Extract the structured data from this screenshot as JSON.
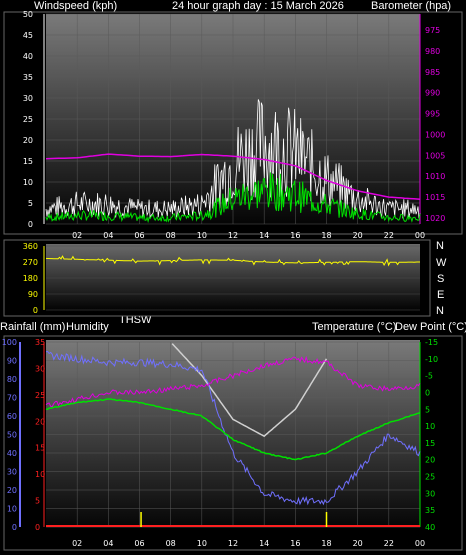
{
  "header": {
    "left": "Windspeed (kph)",
    "center": "24 hour graph day : 15 March 2026",
    "right": "Barometer (hpa)"
  },
  "direction_compass": [
    "N",
    "W",
    "S",
    "E",
    "N"
  ],
  "lower_header": {
    "rainfall": "Rainfall (mm)",
    "humidity": "Humidity",
    "thsw": "THSW",
    "temperature": "Temperature (°C)",
    "dew_point": "Dew Point (°C)"
  },
  "colors": {
    "background": "#000000",
    "wind_gust": "#ffffff",
    "wind_avg": "#00e000",
    "barometer": "#e000e0",
    "wind_direction": "#ffff00",
    "humidity": "#7070ff",
    "rainfall": "#ff2020",
    "temperature": "#00e000",
    "dew_point": "#e000e0",
    "thsw": "#d0d0d0",
    "marker": "#ffff00"
  },
  "chart_data": [
    {
      "type": "line",
      "title": "24 hour graph day : 15 March 2026",
      "x_ticks": [
        "02",
        "04",
        "06",
        "08",
        "10",
        "12",
        "14",
        "16",
        "18",
        "20",
        "22",
        "00"
      ],
      "x": [
        0,
        2,
        4,
        6,
        8,
        10,
        12,
        14,
        16,
        18,
        20,
        22,
        24
      ],
      "y_left": {
        "label": "Windspeed (kph)",
        "ylim": [
          0,
          50
        ],
        "ticks": [
          0,
          5,
          10,
          15,
          20,
          25,
          30,
          35,
          40,
          45,
          50
        ]
      },
      "y_right": {
        "label": "Barometer (hpa)",
        "ylim": [
          975,
          1020
        ],
        "ticks": [
          975,
          980,
          985,
          990,
          995,
          1000,
          1005,
          1010,
          1015,
          1020
        ]
      },
      "series": [
        {
          "name": "Windspeed (kph)",
          "axis": "left",
          "values": [
            3,
            4,
            4,
            3,
            3,
            4,
            12,
            16,
            14,
            9,
            5,
            3,
            3
          ]
        },
        {
          "name": "Barometer (hpa)",
          "axis": "right",
          "values": [
            1005.8,
            1005.6,
            1004.7,
            1005.2,
            1005.3,
            1004.8,
            1005.2,
            1006.0,
            1007.5,
            1011.0,
            1013.5,
            1015.0,
            1015.5
          ]
        }
      ],
      "grid": true
    },
    {
      "type": "line",
      "x_ticks": [],
      "x": [
        0,
        2,
        4,
        6,
        8,
        10,
        12,
        14,
        16,
        18,
        20,
        22,
        24
      ],
      "y_left": {
        "ylim": [
          0,
          360
        ],
        "ticks": [
          0,
          90,
          180,
          270,
          360
        ]
      },
      "y_right": {
        "ticks": [
          "N",
          "W",
          "S",
          "E",
          "N"
        ]
      },
      "series": [
        {
          "name": "Wind direction",
          "axis": "left",
          "values": [
            290,
            285,
            280,
            275,
            278,
            282,
            280,
            270,
            265,
            268,
            272,
            268,
            270
          ]
        }
      ],
      "grid": true
    },
    {
      "type": "line",
      "x_ticks": [
        "02",
        "04",
        "06",
        "08",
        "10",
        "12",
        "14",
        "16",
        "18",
        "20",
        "22",
        "00"
      ],
      "x": [
        0,
        2,
        4,
        6,
        8,
        10,
        12,
        14,
        16,
        18,
        20,
        22,
        24
      ],
      "y_humidity": {
        "label": "Humidity",
        "ylim": [
          0,
          100
        ],
        "ticks": [
          0,
          10,
          20,
          30,
          40,
          50,
          60,
          70,
          80,
          90,
          100
        ]
      },
      "y_rainfall": {
        "label": "Rainfall (mm)",
        "ylim": [
          0,
          35
        ],
        "ticks": [
          0,
          5,
          10,
          15,
          20,
          25,
          30,
          35
        ]
      },
      "y_temperature": {
        "label": "Temperature (°C)",
        "ylim": [
          -15,
          40
        ],
        "ticks": [
          -15,
          -10,
          -5,
          0,
          5,
          10,
          15,
          20,
          25,
          30,
          35,
          40
        ]
      },
      "series": [
        {
          "name": "Humidity",
          "axis": "humidity",
          "values": [
            93,
            91,
            89,
            89,
            88,
            85,
            40,
            18,
            14,
            14,
            30,
            50,
            40
          ]
        },
        {
          "name": "Temperature (°C)",
          "axis": "temperature",
          "values": [
            5,
            3,
            2,
            3,
            5,
            7,
            14,
            18,
            20,
            18,
            13,
            9,
            6
          ]
        },
        {
          "name": "Dew Point (°C)",
          "axis": "temperature",
          "values": [
            4,
            2,
            0,
            0,
            -1,
            -2,
            -5,
            -8,
            -10,
            -9,
            -2,
            -1,
            -2
          ]
        },
        {
          "name": "THSW",
          "axis": "temperature",
          "values": [
            null,
            null,
            null,
            null,
            -15,
            -5,
            8,
            13,
            5,
            -10,
            null,
            null,
            null
          ]
        },
        {
          "name": "Rainfall (mm)",
          "axis": "rainfall",
          "values": [
            0,
            0,
            0,
            0,
            0,
            0,
            0,
            0,
            0,
            0,
            0,
            0,
            0
          ]
        }
      ],
      "markers": {
        "name": "sunrise/sunset",
        "x": [
          6.1,
          18.0
        ]
      },
      "grid": true
    }
  ]
}
